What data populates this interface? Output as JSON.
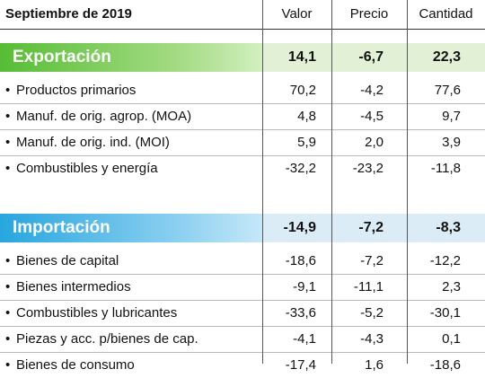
{
  "header": {
    "title": "Septiembre de 2019",
    "columns": [
      "Valor",
      "Precio",
      "Cantidad"
    ]
  },
  "sections": [
    {
      "title": "Exportación",
      "totals": [
        "14,1",
        "-6,7",
        "22,3"
      ],
      "rows": [
        {
          "label": "Productos primarios",
          "values": [
            "70,2",
            "-4,2",
            "77,6"
          ]
        },
        {
          "label": "Manuf. de orig. agrop. (MOA)",
          "values": [
            "4,8",
            "-4,5",
            "9,7"
          ]
        },
        {
          "label": "Manuf. de orig. ind. (MOI)",
          "values": [
            "5,9",
            "2,0",
            "3,9"
          ]
        },
        {
          "label": "Combustibles y energía",
          "values": [
            "-32,2",
            "-23,2",
            "-11,8"
          ]
        }
      ]
    },
    {
      "title": "Importación",
      "totals": [
        "-14,9",
        "-7,2",
        "-8,3"
      ],
      "rows": [
        {
          "label": "Bienes de capital",
          "values": [
            "-18,6",
            "-7,2",
            "-12,2"
          ]
        },
        {
          "label": "Bienes intermedios",
          "values": [
            "-9,1",
            "-11,1",
            "2,3"
          ]
        },
        {
          "label": "Combustibles y lubricantes",
          "values": [
            "-33,6",
            "-5,2",
            "-30,1"
          ]
        },
        {
          "label": "Piezas y acc. p/bienes de cap.",
          "values": [
            "-4,1",
            "-4,3",
            "0,1"
          ]
        },
        {
          "label": "Bienes de consumo",
          "values": [
            "-17,4",
            "1,6",
            "-18,6"
          ]
        }
      ]
    }
  ]
}
